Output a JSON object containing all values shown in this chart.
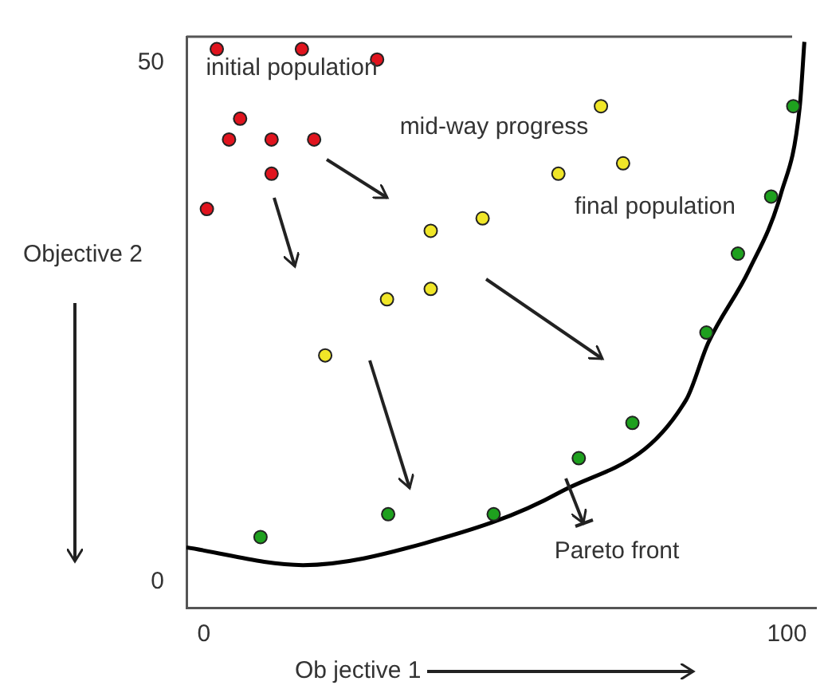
{
  "chart_data": {
    "type": "scatter",
    "xlabel": "Ob jective 1",
    "ylabel": "Objective 2",
    "xlim": [
      -3,
      105
    ],
    "ylim": [
      -2.5,
      52.5
    ],
    "xticks": [
      0,
      100
    ],
    "yticks": [
      0,
      50
    ],
    "grid": false,
    "legend": false,
    "marker": "circle",
    "series": [
      {
        "color": "#e0141e",
        "x": [
          2.2,
          16.8,
          29.7,
          6.2,
          4.3,
          11.6,
          18.9,
          11.6,
          0.5
        ],
        "values": [
          51.3,
          51.3,
          50.3,
          44.6,
          42.6,
          42.6,
          42.6,
          39.3,
          35.9
        ]
      },
      {
        "color": "#f0e628",
        "x": [
          38.9,
          47.8,
          31.4,
          38.9,
          20.8,
          68.1,
          71.9,
          60.8
        ],
        "values": [
          33.8,
          35.0,
          27.2,
          28.2,
          21.8,
          45.8,
          40.3,
          39.3
        ]
      },
      {
        "color": "#1ea01e",
        "x": [
          101.1,
          97.3,
          91.6,
          86.2,
          73.5,
          64.3,
          49.7,
          31.6,
          9.7
        ],
        "values": [
          45.8,
          37.1,
          31.6,
          24.0,
          15.3,
          11.9,
          6.5,
          6.5,
          4.3
        ]
      },
      {
        "type": "line",
        "color": "#000000",
        "marker": "none",
        "x": [
          -3,
          17,
          37.8,
          61,
          82.7,
          86.5,
          93.5,
          99,
          102.2,
          103
        ],
        "values": [
          3.3,
          1.6,
          3.7,
          8.6,
          17.5,
          23,
          30,
          37.4,
          45.7,
          52
        ]
      }
    ],
    "annotations": [
      "initial population",
      "mid-way progress",
      "final population",
      "Pareto front"
    ]
  }
}
